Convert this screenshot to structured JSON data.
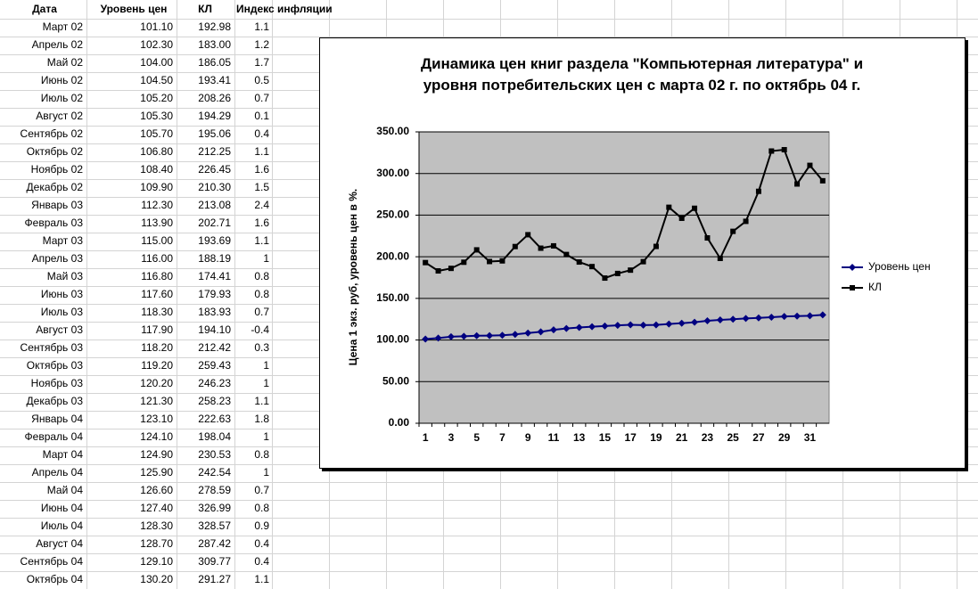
{
  "table": {
    "header": [
      "Дата",
      "Уровень цен",
      "КЛ",
      "Индекс инфляции"
    ],
    "rows": [
      [
        "Март 02",
        "101.10",
        "192.98",
        "1.1"
      ],
      [
        "Апрель 02",
        "102.30",
        "183.00",
        "1.2"
      ],
      [
        "Май 02",
        "104.00",
        "186.05",
        "1.7"
      ],
      [
        "Июнь 02",
        "104.50",
        "193.41",
        "0.5"
      ],
      [
        "Июль 02",
        "105.20",
        "208.26",
        "0.7"
      ],
      [
        "Август 02",
        "105.30",
        "194.29",
        "0.1"
      ],
      [
        "Сентябрь 02",
        "105.70",
        "195.06",
        "0.4"
      ],
      [
        "Октябрь 02",
        "106.80",
        "212.25",
        "1.1"
      ],
      [
        "Ноябрь 02",
        "108.40",
        "226.45",
        "1.6"
      ],
      [
        "Декабрь 02",
        "109.90",
        "210.30",
        "1.5"
      ],
      [
        "Январь 03",
        "112.30",
        "213.08",
        "2.4"
      ],
      [
        "Февраль 03",
        "113.90",
        "202.71",
        "1.6"
      ],
      [
        "Март 03",
        "115.00",
        "193.69",
        "1.1"
      ],
      [
        "Апрель 03",
        "116.00",
        "188.19",
        "1"
      ],
      [
        "Май 03",
        "116.80",
        "174.41",
        "0.8"
      ],
      [
        "Июнь 03",
        "117.60",
        "179.93",
        "0.8"
      ],
      [
        "Июль 03",
        "118.30",
        "183.93",
        "0.7"
      ],
      [
        "Август 03",
        "117.90",
        "194.10",
        "-0.4"
      ],
      [
        "Сентябрь 03",
        "118.20",
        "212.42",
        "0.3"
      ],
      [
        "Октябрь 03",
        "119.20",
        "259.43",
        "1"
      ],
      [
        "Ноябрь 03",
        "120.20",
        "246.23",
        "1"
      ],
      [
        "Декабрь 03",
        "121.30",
        "258.23",
        "1.1"
      ],
      [
        "Январь 04",
        "123.10",
        "222.63",
        "1.8"
      ],
      [
        "Февраль 04",
        "124.10",
        "198.04",
        "1"
      ],
      [
        "Март 04",
        "124.90",
        "230.53",
        "0.8"
      ],
      [
        "Апрель 04",
        "125.90",
        "242.54",
        "1"
      ],
      [
        "Май 04",
        "126.60",
        "278.59",
        "0.7"
      ],
      [
        "Июнь 04",
        "127.40",
        "326.99",
        "0.8"
      ],
      [
        "Июль 04",
        "128.30",
        "328.57",
        "0.9"
      ],
      [
        "Август 04",
        "128.70",
        "287.42",
        "0.4"
      ],
      [
        "Сентябрь 04",
        "129.10",
        "309.77",
        "0.4"
      ],
      [
        "Октябрь 04",
        "130.20",
        "291.27",
        "1.1"
      ]
    ]
  },
  "chart_data": {
    "type": "line",
    "title": "Динамика цен книг раздела  \"Компьютерная литература\" и уровня потребительских цен с марта 02 г. по октябрь 04 г.",
    "ylabel": "Цена 1 экз. руб, уровень цен в %.",
    "categories": [
      1,
      null,
      3,
      null,
      5,
      null,
      7,
      null,
      9,
      null,
      11,
      null,
      13,
      null,
      15,
      null,
      17,
      null,
      19,
      null,
      21,
      null,
      23,
      null,
      25,
      null,
      27,
      null,
      29,
      null,
      31,
      null
    ],
    "series": [
      {
        "name": "Уровень цен",
        "color": "#000080",
        "marker": "diamond",
        "values": [
          101.1,
          102.3,
          104,
          104.5,
          105.2,
          105.3,
          105.7,
          106.8,
          108.4,
          109.9,
          112.3,
          113.9,
          115,
          116,
          116.8,
          117.6,
          118.3,
          117.9,
          118.2,
          119.2,
          120.2,
          121.3,
          123.1,
          124.1,
          124.9,
          125.9,
          126.6,
          127.4,
          128.3,
          128.7,
          129.1,
          130.2
        ]
      },
      {
        "name": "КЛ",
        "color": "#000000",
        "marker": "square",
        "values": [
          192.98,
          183,
          186.05,
          193.41,
          208.26,
          194.29,
          195.06,
          212.25,
          226.45,
          210.3,
          213.08,
          202.71,
          193.69,
          188.19,
          174.41,
          179.93,
          183.93,
          194.1,
          212.42,
          259.43,
          246.23,
          258.23,
          222.63,
          198.04,
          230.53,
          242.54,
          278.59,
          326.99,
          328.57,
          287.42,
          309.77,
          291.27
        ]
      }
    ],
    "ylim": [
      0,
      350
    ],
    "yticks": [
      {
        "value": 0,
        "label": "0.00"
      },
      {
        "value": 50,
        "label": "50.00"
      },
      {
        "value": 100,
        "label": "100.00"
      },
      {
        "value": 150,
        "label": "150.00"
      },
      {
        "value": 200,
        "label": "200.00"
      },
      {
        "value": 250,
        "label": "250.00"
      },
      {
        "value": 300,
        "label": "300.00"
      },
      {
        "value": 350,
        "label": "350.00"
      }
    ],
    "grid": true,
    "legend": "right",
    "plot_background": "#c0c0c0"
  }
}
